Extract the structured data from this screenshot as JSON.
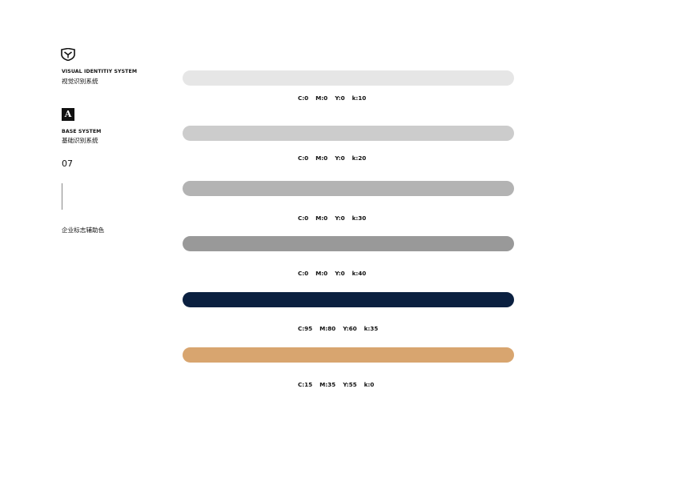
{
  "sidebar": {
    "logo_icon": "shield-emblem-icon",
    "vis_en": "VISUAL IDENTITIY SYSTEM",
    "vis_cn": "视觉识别系统",
    "badge_letter": "A",
    "base_en": "BASE SYSTEM",
    "base_cn": "基础识别系统",
    "page_number": "07",
    "section_title": "企业标志辅助色"
  },
  "swatches": [
    {
      "color": "#e6e6e6",
      "c": "C:0",
      "m": "M:0",
      "y": "Y:0",
      "k": "k:10"
    },
    {
      "color": "#cccccc",
      "c": "C:0",
      "m": "M:0",
      "y": "Y:0",
      "k": "k:20"
    },
    {
      "color": "#b3b3b3",
      "c": "C:0",
      "m": "M:0",
      "y": "Y:0",
      "k": "k:30"
    },
    {
      "color": "#999999",
      "c": "C:0",
      "m": "M:0",
      "y": "Y:0",
      "k": "k:40"
    },
    {
      "color": "#0b2040",
      "c": "C:95",
      "m": "M:80",
      "y": "Y:60",
      "k": "k:35"
    },
    {
      "color": "#d8a56f",
      "c": "C:15",
      "m": "M:35",
      "y": "Y:55",
      "k": "k:0"
    }
  ]
}
